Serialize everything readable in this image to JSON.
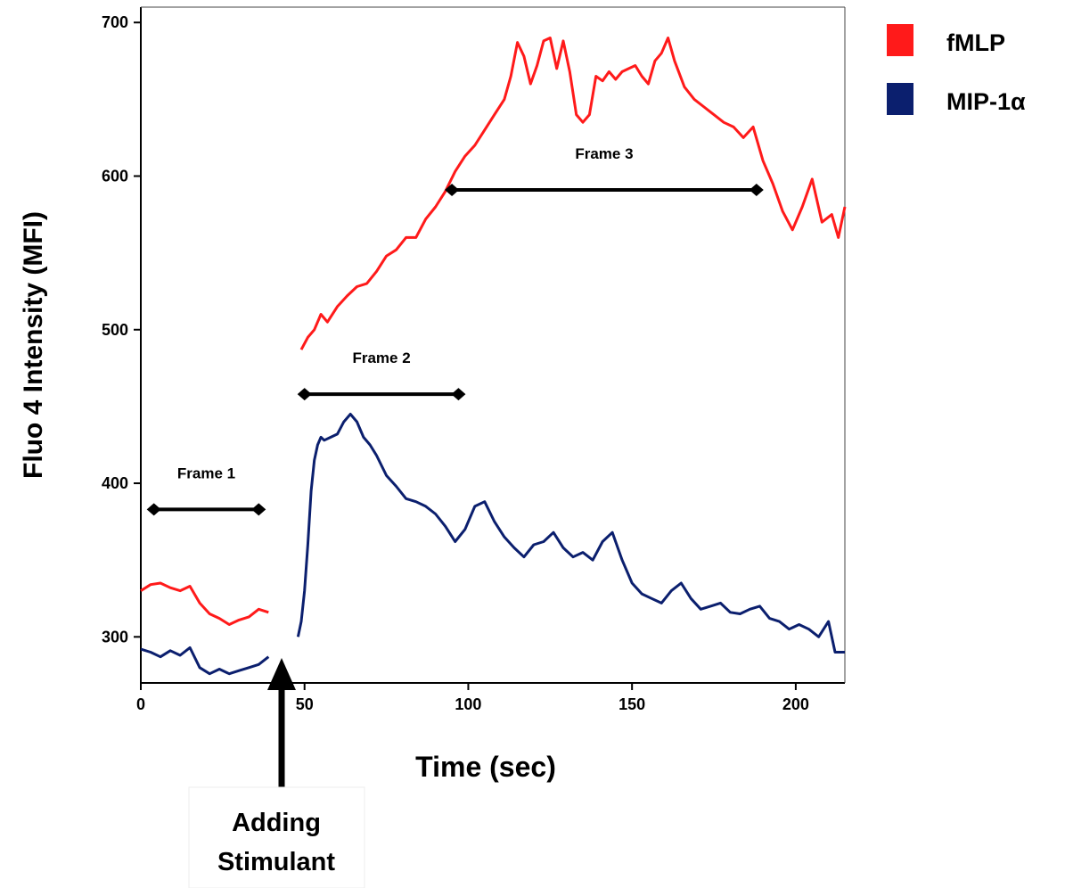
{
  "chart_data": {
    "type": "line",
    "title": "",
    "xlabel": "Time (sec)",
    "ylabel": "Fluo 4 Intensity (MFI)",
    "xlim": [
      0,
      215
    ],
    "ylim": [
      270,
      710
    ],
    "x_ticks": [
      0,
      50,
      100,
      150,
      200
    ],
    "y_ticks": [
      300,
      400,
      500,
      600,
      700
    ],
    "grid": false,
    "legend_position": "top-right outside",
    "series": [
      {
        "name": "fMLP",
        "color": "#ff1a1a",
        "segments": [
          {
            "x": [
              0,
              3,
              6,
              9,
              12,
              15,
              18,
              21,
              24,
              27,
              30,
              33,
              36,
              39
            ],
            "y": [
              330,
              334,
              335,
              332,
              330,
              333,
              322,
              315,
              312,
              308,
              311,
              313,
              318,
              316
            ]
          },
          {
            "x": [
              49,
              51,
              53,
              55,
              57,
              60,
              63,
              66,
              69,
              72,
              75,
              78,
              81,
              84,
              87,
              90,
              93,
              96,
              99,
              102,
              105,
              108,
              111,
              113,
              115,
              117,
              119,
              121,
              123,
              125,
              127,
              129,
              131,
              133,
              135,
              137,
              139,
              141,
              143,
              145,
              147,
              149,
              151,
              153,
              155,
              157,
              159,
              161,
              163,
              166,
              169,
              172,
              175,
              178,
              181,
              184,
              187,
              190,
              193,
              196,
              199,
              202,
              205,
              208,
              211,
              213,
              215
            ],
            "y": [
              487,
              495,
              500,
              510,
              505,
              515,
              522,
              528,
              530,
              538,
              548,
              552,
              560,
              560,
              572,
              580,
              590,
              603,
              613,
              620,
              630,
              640,
              650,
              665,
              687,
              678,
              660,
              672,
              688,
              690,
              670,
              688,
              668,
              640,
              635,
              640,
              665,
              662,
              668,
              663,
              668,
              670,
              672,
              665,
              660,
              675,
              680,
              690,
              675,
              658,
              650,
              645,
              640,
              635,
              632,
              625,
              632,
              610,
              595,
              577,
              565,
              580,
              598,
              570,
              575,
              560,
              580
            ]
          }
        ]
      },
      {
        "name": "MIP-1α",
        "color": "#0b1f6e",
        "segments": [
          {
            "x": [
              0,
              3,
              6,
              9,
              12,
              15,
              18,
              21,
              24,
              27,
              30,
              33,
              36,
              39
            ],
            "y": [
              292,
              290,
              287,
              291,
              288,
              293,
              280,
              276,
              279,
              276,
              278,
              280,
              282,
              287
            ]
          },
          {
            "x": [
              48,
              49,
              50,
              51,
              52,
              53,
              54,
              55,
              56,
              58,
              60,
              62,
              64,
              66,
              68,
              70,
              72,
              75,
              78,
              81,
              84,
              87,
              90,
              93,
              96,
              99,
              102,
              105,
              108,
              111,
              114,
              117,
              120,
              123,
              126,
              129,
              132,
              135,
              138,
              141,
              144,
              147,
              150,
              153,
              156,
              159,
              162,
              165,
              168,
              171,
              174,
              177,
              180,
              183,
              186,
              189,
              192,
              195,
              198,
              201,
              204,
              207,
              210,
              212,
              215
            ],
            "y": [
              300,
              310,
              330,
              360,
              395,
              415,
              425,
              430,
              428,
              430,
              432,
              440,
              445,
              440,
              430,
              425,
              418,
              405,
              398,
              390,
              388,
              385,
              380,
              372,
              362,
              370,
              385,
              388,
              375,
              365,
              358,
              352,
              360,
              362,
              368,
              358,
              352,
              355,
              350,
              362,
              368,
              350,
              335,
              328,
              325,
              322,
              330,
              335,
              325,
              318,
              320,
              322,
              316,
              315,
              318,
              320,
              312,
              310,
              305,
              308,
              305,
              300,
              310,
              290,
              290
            ]
          }
        ]
      }
    ],
    "annotations": [
      {
        "label": "Frame 1",
        "x_start": 4,
        "x_end": 36,
        "y": 383
      },
      {
        "label": "Frame 2",
        "x_start": 50,
        "x_end": 97,
        "y": 458
      },
      {
        "label": "Frame 3",
        "x_start": 95,
        "x_end": 188,
        "y": 591
      }
    ],
    "stimulus": {
      "label_line1": "Adding",
      "label_line2": "Stimulant",
      "x": 43
    }
  }
}
